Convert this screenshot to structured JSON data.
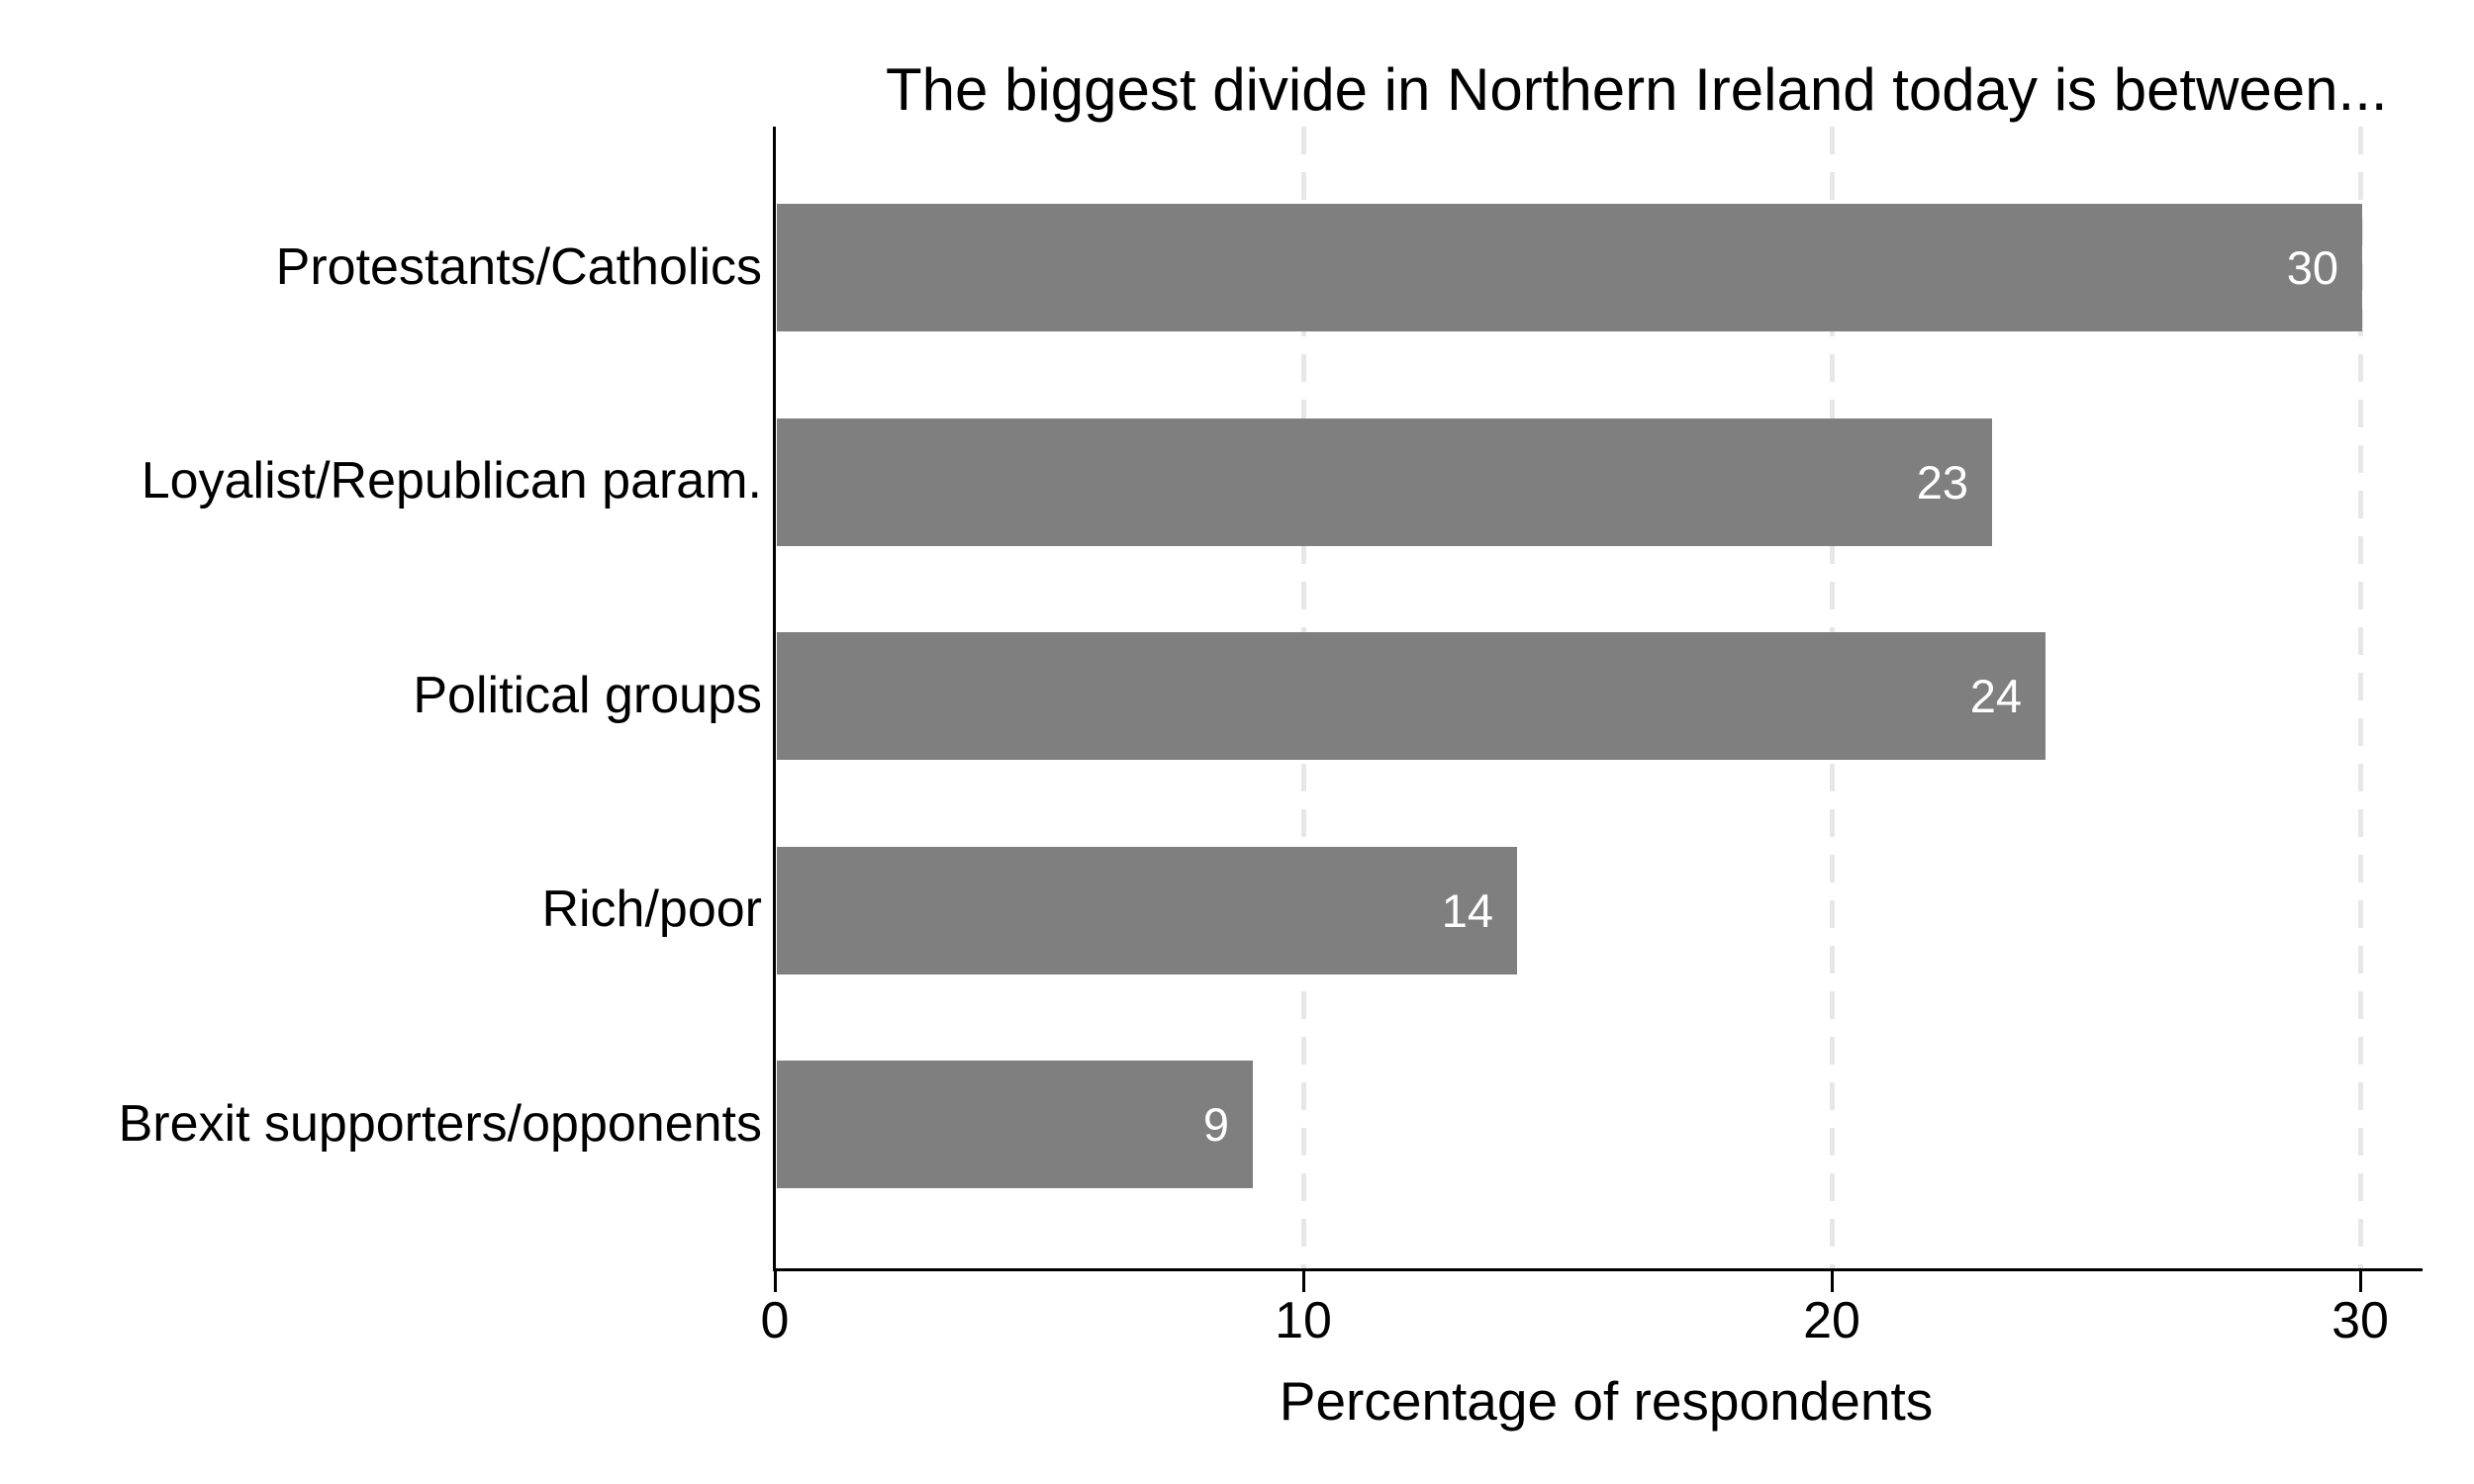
{
  "chart_data": {
    "type": "bar",
    "orientation": "horizontal",
    "title": "The biggest divide in Northern Ireland today is between...",
    "categories": [
      "Protestants/Catholics",
      "Loyalist/Republican param.",
      "Political groups",
      "Rich/poor",
      "Brexit supporters/opponents"
    ],
    "values": [
      30,
      23,
      24,
      14,
      9
    ],
    "value_labels": [
      "30",
      "23",
      "24",
      "14",
      "9"
    ],
    "xlabel": "Percentage of respondents",
    "ylabel": "",
    "xticks": [
      0,
      10,
      20,
      30
    ],
    "xtick_labels": [
      "0",
      "10",
      "20",
      "30"
    ],
    "xlim": [
      0,
      31.2
    ],
    "grid": "dashed vertical gridlines at 10, 20, 30",
    "legend": "none",
    "colors": {
      "bar_fill": "#7f7f7f",
      "bar_value_text": "#ffffff",
      "axis_line": "#000000",
      "gridline": "#e7e7e7",
      "text": "#000000",
      "background": "#ffffff"
    }
  }
}
